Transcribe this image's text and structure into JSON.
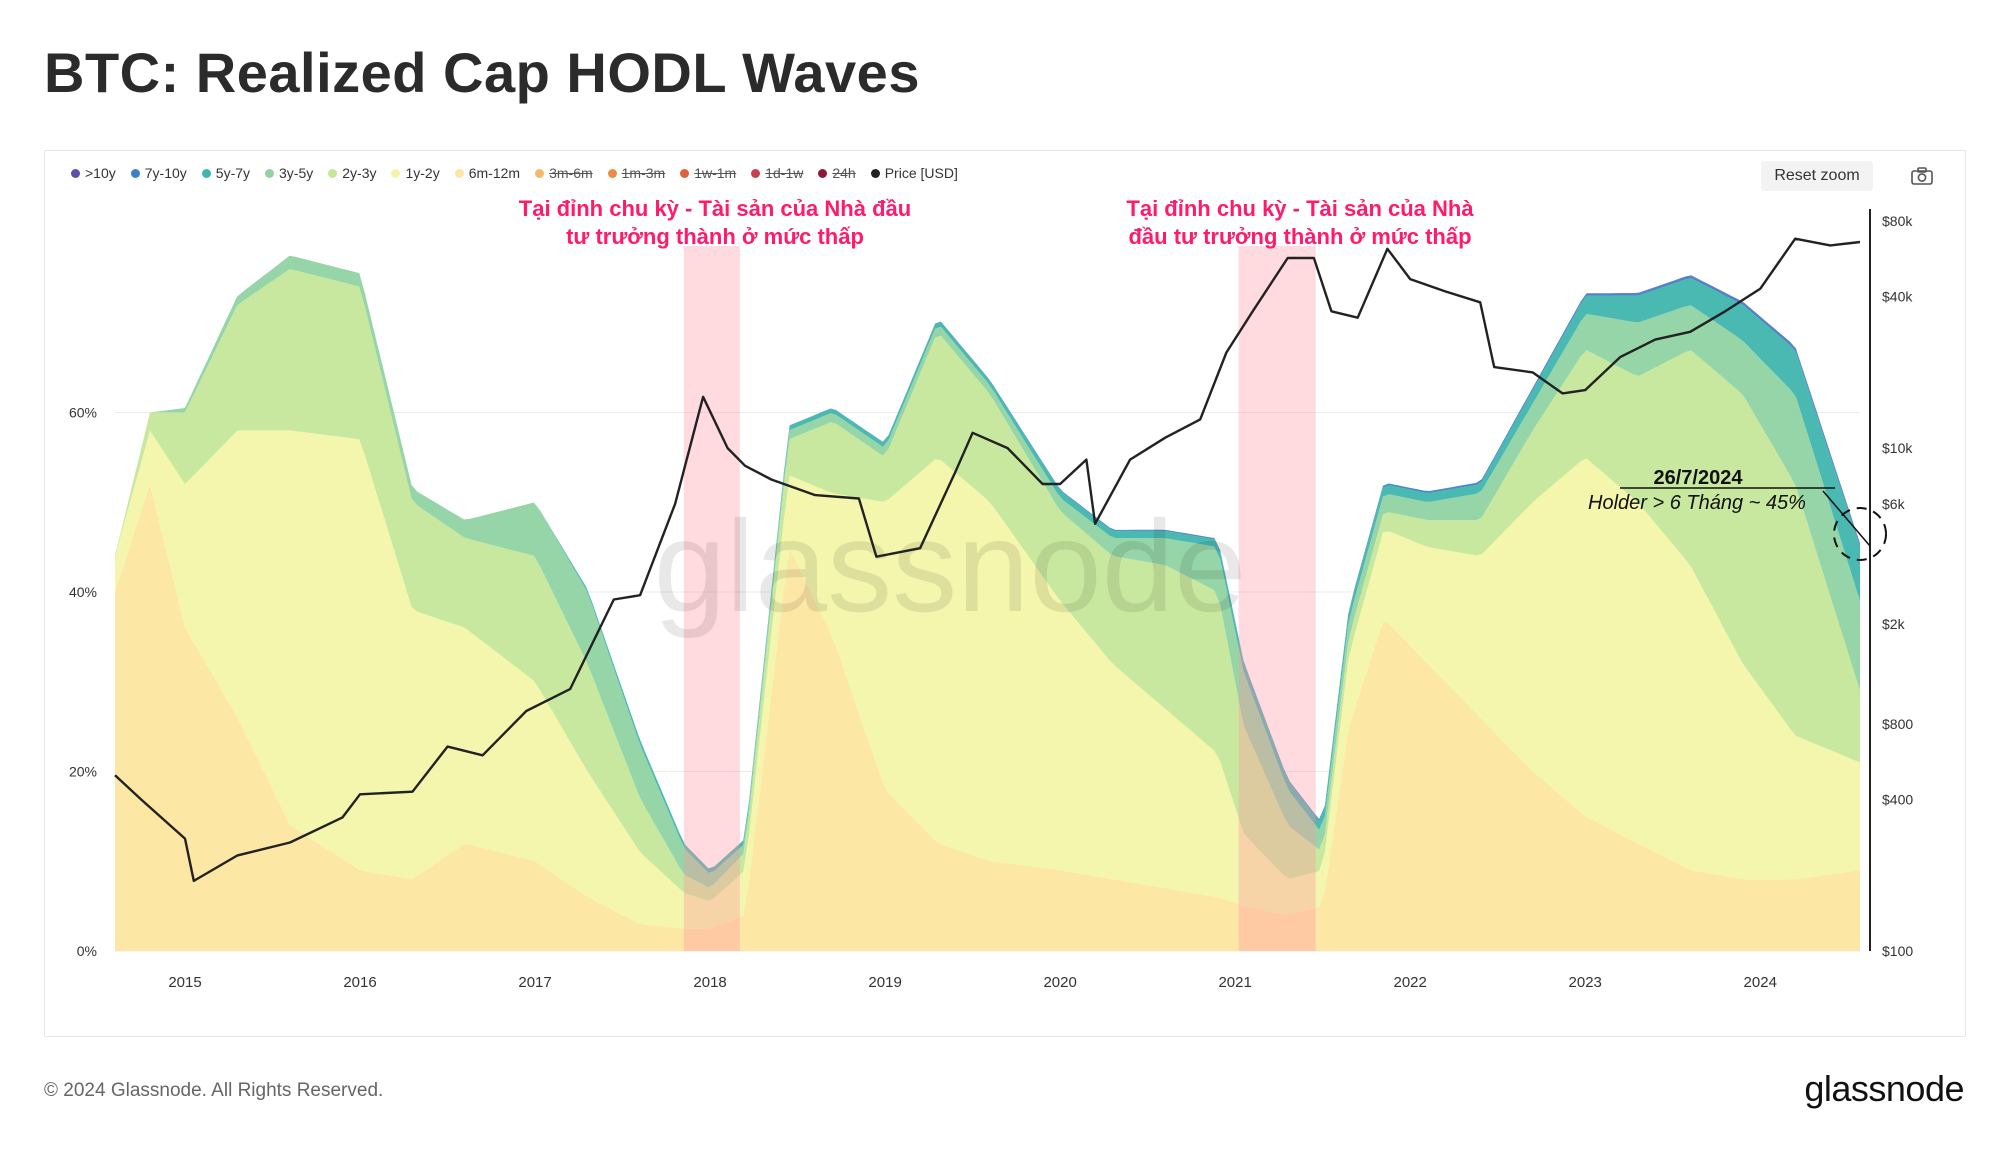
{
  "page": {
    "title": "BTC: Realized Cap HODL Waves",
    "copyright": "© 2024 Glassnode. All Rights Reserved.",
    "brand": "glassnode",
    "watermark": "glassnode",
    "reset_zoom_label": "Reset zoom",
    "camera_icon": "camera-icon"
  },
  "chart_data": {
    "type": "area",
    "stacking": "percent",
    "title": "BTC: Realized Cap HODL Waves",
    "legend": [
      {
        "label": ">10y",
        "color": "#5b4fb0",
        "visible": true
      },
      {
        "label": "7y-10y",
        "color": "#3b82c4",
        "visible": true
      },
      {
        "label": "5y-7y",
        "color": "#3fb5ad",
        "visible": true
      },
      {
        "label": "3y-5y",
        "color": "#8fd3a3",
        "visible": true
      },
      {
        "label": "2y-3y",
        "color": "#c6e79a",
        "visible": true
      },
      {
        "label": "1y-2y",
        "color": "#f2f5a8",
        "visible": true
      },
      {
        "label": "6m-12m",
        "color": "#fde6a0",
        "visible": true
      },
      {
        "label": "3m-6m",
        "color": "#f7b867",
        "visible": false
      },
      {
        "label": "1m-3m",
        "color": "#f08a44",
        "visible": false
      },
      {
        "label": "1w-1m",
        "color": "#e06040",
        "visible": false
      },
      {
        "label": "1d-1w",
        "color": "#c84050",
        "visible": false
      },
      {
        "label": "24h",
        "color": "#8b1a3a",
        "visible": false
      },
      {
        "label": "Price [USD]",
        "color": "#222222",
        "visible": true
      }
    ],
    "x_axis": {
      "ticks": [
        "2015",
        "2016",
        "2017",
        "2018",
        "2019",
        "2020",
        "2021",
        "2022",
        "2023",
        "2024"
      ],
      "range": [
        2014.6,
        2024.57
      ]
    },
    "y_left": {
      "ticks": [
        "0%",
        "20%",
        "40%",
        "60%"
      ],
      "tick_values": [
        0,
        20,
        40,
        60
      ],
      "range": [
        0,
        83
      ]
    },
    "y_right": {
      "scale": "log",
      "ticks": [
        "$100",
        "$400",
        "$800",
        "$2k",
        "$6k",
        "$10k",
        "$40k",
        "$80k"
      ],
      "tick_values": [
        100,
        400,
        800,
        2000,
        6000,
        10000,
        40000,
        80000
      ],
      "range": [
        100,
        80000
      ]
    },
    "series": [
      {
        "name": "6m-12m",
        "color": "#fde6a0",
        "x": [
          2014.6,
          2014.8,
          2015.0,
          2015.3,
          2015.6,
          2016.0,
          2016.3,
          2016.6,
          2017.0,
          2017.3,
          2017.6,
          2017.85,
          2018.0,
          2018.2,
          2018.45,
          2018.7,
          2019.0,
          2019.3,
          2019.6,
          2020.0,
          2020.3,
          2020.6,
          2020.9,
          2021.05,
          2021.3,
          2021.5,
          2021.65,
          2021.85,
          2022.1,
          2022.4,
          2022.7,
          2023.0,
          2023.3,
          2023.6,
          2023.9,
          2024.2,
          2024.57
        ],
        "values": [
          40,
          52,
          36,
          26,
          14,
          9,
          8,
          12,
          10,
          6,
          3,
          2.5,
          2.5,
          4,
          45,
          35,
          18,
          12,
          10,
          9,
          8,
          7,
          6,
          5,
          4,
          5,
          25,
          37,
          32,
          26,
          20,
          15,
          12,
          9,
          8,
          8,
          9
        ]
      },
      {
        "name": "1y-2y",
        "color": "#f2f5a8",
        "x": [
          2014.6,
          2014.8,
          2015.0,
          2015.3,
          2015.6,
          2016.0,
          2016.3,
          2016.6,
          2017.0,
          2017.3,
          2017.6,
          2017.85,
          2018.0,
          2018.2,
          2018.45,
          2018.7,
          2019.0,
          2019.3,
          2019.6,
          2020.0,
          2020.3,
          2020.6,
          2020.9,
          2021.05,
          2021.3,
          2021.5,
          2021.65,
          2021.85,
          2022.1,
          2022.4,
          2022.7,
          2023.0,
          2023.3,
          2023.6,
          2023.9,
          2024.2,
          2024.57
        ],
        "values": [
          4,
          6,
          16,
          32,
          44,
          48,
          30,
          24,
          20,
          14,
          8,
          4,
          3,
          5,
          8,
          16,
          32,
          43,
          40,
          30,
          24,
          20,
          16,
          8,
          4,
          4,
          8,
          10,
          13,
          18,
          30,
          40,
          38,
          34,
          24,
          16,
          12
        ]
      },
      {
        "name": "2y-3y",
        "color": "#c6e79a",
        "x": [
          2014.6,
          2014.8,
          2015.0,
          2015.3,
          2015.6,
          2016.0,
          2016.3,
          2016.6,
          2017.0,
          2017.3,
          2017.6,
          2017.85,
          2018.0,
          2018.2,
          2018.45,
          2018.7,
          2019.0,
          2019.3,
          2019.6,
          2020.0,
          2020.3,
          2020.6,
          2020.9,
          2021.05,
          2021.3,
          2021.5,
          2021.65,
          2021.85,
          2022.1,
          2022.4,
          2022.7,
          2023.0,
          2023.3,
          2023.6,
          2023.9,
          2024.2,
          2024.57
        ],
        "values": [
          0,
          2,
          8,
          14,
          18,
          17,
          12,
          10,
          14,
          12,
          6,
          2,
          1.5,
          2,
          4,
          8,
          5,
          14,
          12,
          10,
          12,
          16,
          18,
          12,
          6,
          2,
          2,
          2,
          3,
          4,
          8,
          12,
          14,
          24,
          30,
          28,
          8
        ]
      },
      {
        "name": "3y-5y",
        "color": "#8fd3a3",
        "x": [
          2014.6,
          2014.8,
          2015.0,
          2015.3,
          2015.6,
          2016.0,
          2016.3,
          2016.6,
          2017.0,
          2017.3,
          2017.6,
          2017.85,
          2018.0,
          2018.2,
          2018.45,
          2018.7,
          2019.0,
          2019.3,
          2019.6,
          2020.0,
          2020.3,
          2020.6,
          2020.9,
          2021.05,
          2021.3,
          2021.5,
          2021.65,
          2021.85,
          2022.1,
          2022.4,
          2022.7,
          2023.0,
          2023.3,
          2023.6,
          2023.9,
          2024.2,
          2024.57
        ],
        "values": [
          0,
          0,
          0.5,
          1,
          1.5,
          1.5,
          1.5,
          2,
          6,
          8,
          6,
          3,
          1.5,
          1,
          1,
          1,
          1,
          1,
          1,
          1.5,
          2,
          3,
          5,
          6,
          4,
          2,
          2,
          2,
          2,
          3,
          3,
          4,
          6,
          5,
          6,
          10,
          10
        ]
      },
      {
        "name": "5y-7y",
        "color": "#3fb5ad",
        "x": [
          2014.6,
          2014.8,
          2015.0,
          2015.3,
          2015.6,
          2016.0,
          2016.3,
          2016.6,
          2017.0,
          2017.3,
          2017.6,
          2017.85,
          2018.0,
          2018.2,
          2018.45,
          2018.7,
          2019.0,
          2019.3,
          2019.6,
          2020.0,
          2020.3,
          2020.6,
          2020.9,
          2021.05,
          2021.3,
          2021.5,
          2021.65,
          2021.85,
          2022.1,
          2022.4,
          2022.7,
          2023.0,
          2023.3,
          2023.6,
          2023.9,
          2024.2,
          2024.57
        ],
        "values": [
          0,
          0,
          0,
          0,
          0,
          0,
          0,
          0,
          0,
          0.3,
          0.5,
          0.5,
          0.5,
          0.5,
          0.5,
          0.5,
          0.5,
          0.5,
          0.5,
          0.8,
          0.8,
          0.8,
          0.8,
          1,
          1,
          1,
          1,
          1,
          1,
          1,
          1.5,
          2,
          3,
          3,
          4,
          5,
          6
        ]
      },
      {
        "name": "7y-10y",
        "color": "#3b82c4",
        "x": [
          2014.6,
          2016.0,
          2018.0,
          2020.0,
          2022.0,
          2024.57
        ],
        "values": [
          0,
          0,
          0,
          0.1,
          0.2,
          0.3
        ]
      },
      {
        "name": ">10y",
        "color": "#5b4fb0",
        "x": [
          2014.6,
          2016.0,
          2018.0,
          2020.0,
          2022.0,
          2024.57
        ],
        "values": [
          0,
          0,
          0,
          0,
          0,
          0.1
        ]
      },
      {
        "name": "Price [USD]",
        "color": "#222222",
        "axis": "right",
        "x": [
          2014.6,
          2014.75,
          2015.0,
          2015.05,
          2015.3,
          2015.6,
          2015.9,
          2016.0,
          2016.3,
          2016.5,
          2016.7,
          2016.95,
          2017.2,
          2017.45,
          2017.6,
          2017.8,
          2017.96,
          2018.1,
          2018.2,
          2018.35,
          2018.6,
          2018.85,
          2018.95,
          2019.2,
          2019.4,
          2019.5,
          2019.7,
          2019.9,
          2020.0,
          2020.15,
          2020.2,
          2020.4,
          2020.6,
          2020.8,
          2020.95,
          2021.1,
          2021.3,
          2021.45,
          2021.55,
          2021.7,
          2021.87,
          2022.0,
          2022.2,
          2022.4,
          2022.48,
          2022.7,
          2022.87,
          2023.0,
          2023.2,
          2023.4,
          2023.6,
          2023.8,
          2024.0,
          2024.2,
          2024.4,
          2024.57
        ],
        "values": [
          500,
          400,
          280,
          190,
          240,
          270,
          340,
          420,
          430,
          650,
          600,
          900,
          1100,
          2500,
          2600,
          6000,
          16000,
          10000,
          8500,
          7500,
          6500,
          6300,
          3700,
          4000,
          8000,
          11500,
          10000,
          7200,
          7200,
          9000,
          5000,
          9000,
          11000,
          13000,
          24000,
          35000,
          57000,
          57000,
          35000,
          33000,
          62000,
          47000,
          42000,
          38000,
          21000,
          20000,
          16500,
          17000,
          23000,
          27000,
          29000,
          35000,
          43000,
          68000,
          64000,
          66000
        ]
      }
    ],
    "highlight_bands": [
      {
        "x_start": 2017.85,
        "x_end": 2018.17,
        "color": "rgba(255,150,160,0.35)"
      },
      {
        "x_start": 2021.02,
        "x_end": 2021.46,
        "color": "rgba(255,150,160,0.35)"
      }
    ],
    "annotations": [
      {
        "text_lines": [
          "Tại đỉnh chu kỳ - Tài sản của Nhà đầu",
          "tư trưởng thành ở mức thấp"
        ],
        "color": "#ff1a6c"
      },
      {
        "text_lines": [
          "Tại đỉnh chu kỳ - Tài sản của Nhà",
          "đầu tư trưởng thành ở mức thấp"
        ],
        "color": "#ff1a6c"
      },
      {
        "date": "26/7/2024",
        "text": "Holder > 6 Tháng ~ 45%",
        "color": "#111111"
      }
    ]
  }
}
